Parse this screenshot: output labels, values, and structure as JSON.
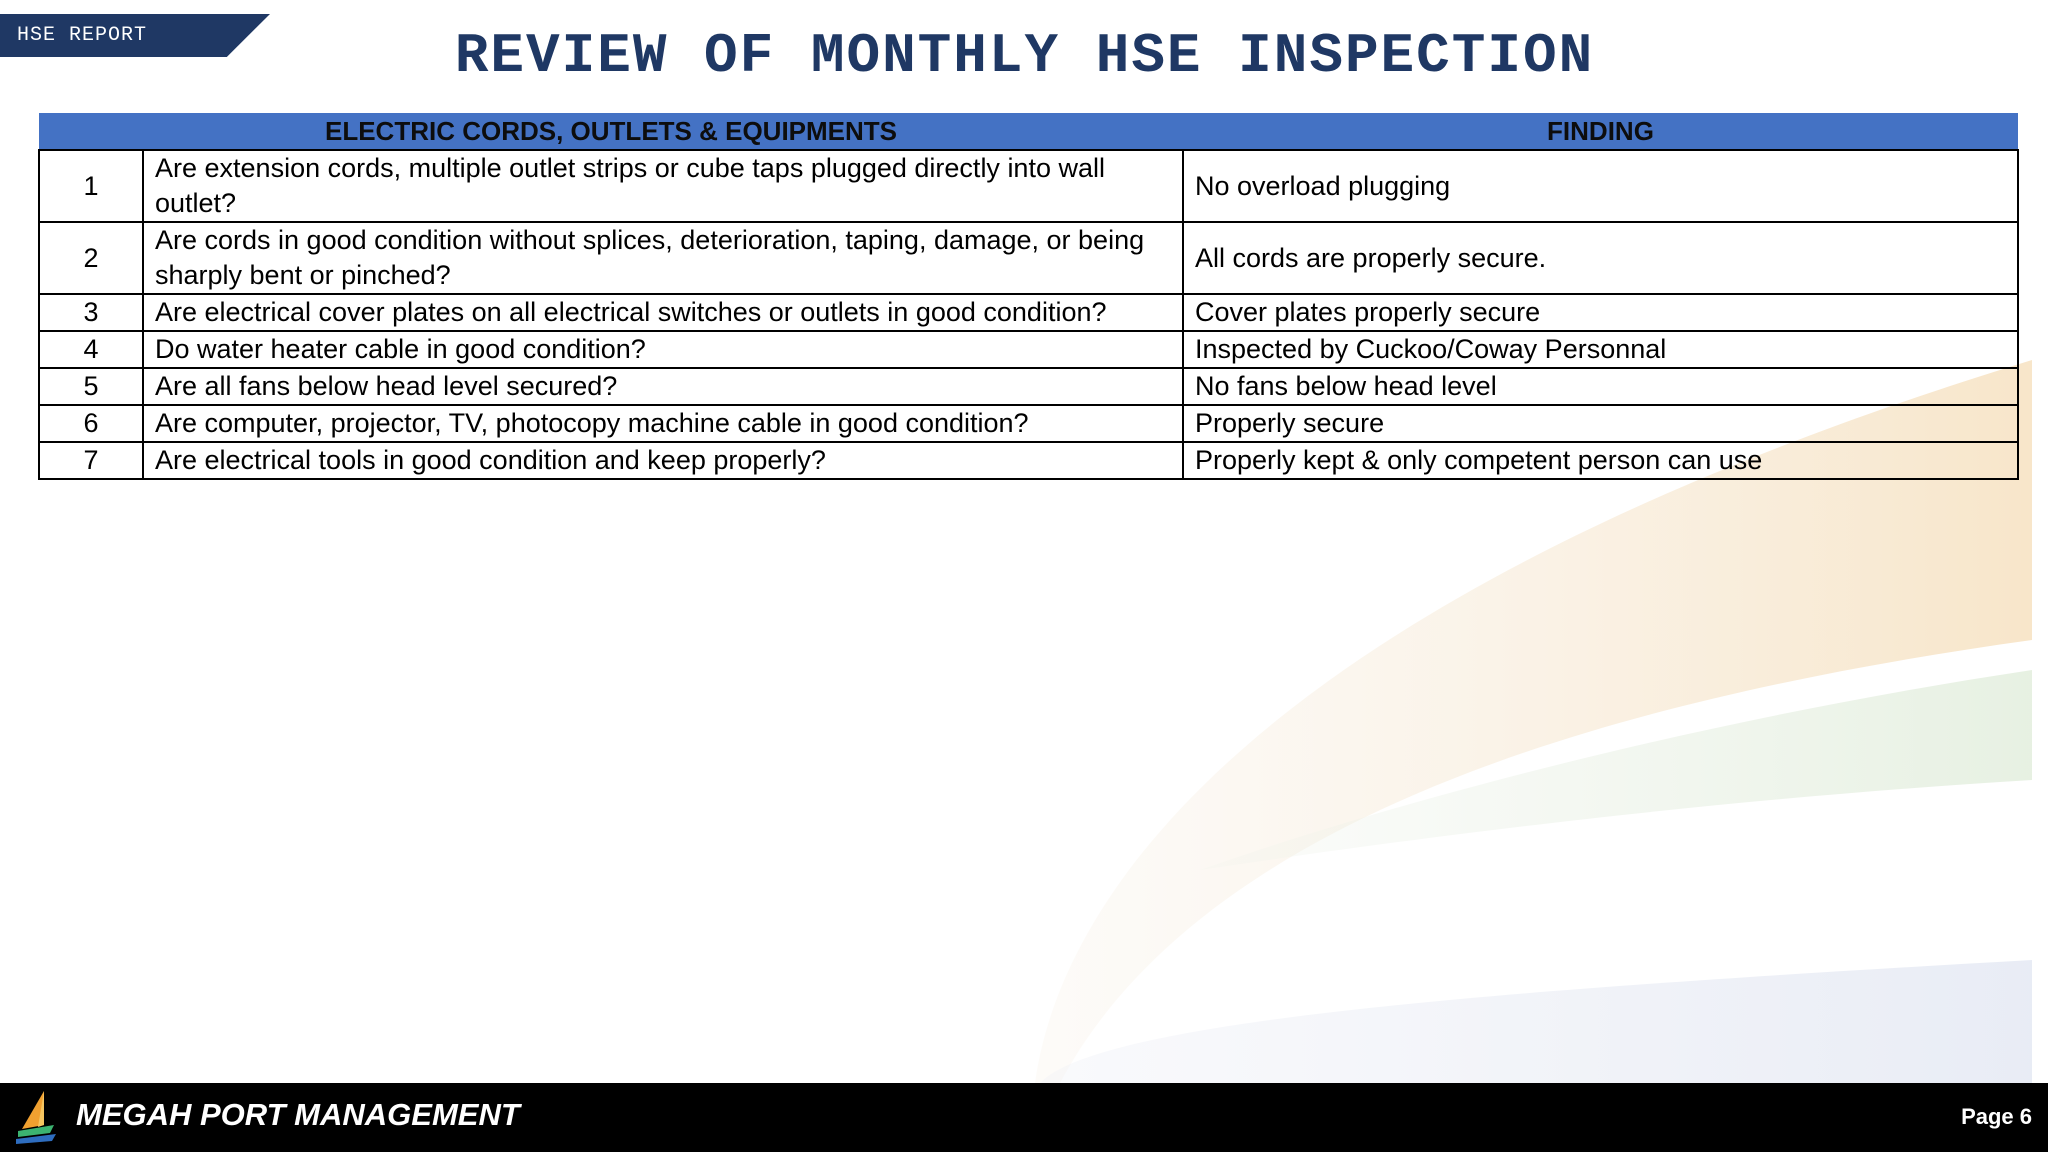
{
  "header": {
    "tag": "HSE REPORT",
    "title": "REVIEW OF MONTHLY HSE INSPECTION"
  },
  "table": {
    "headers": [
      "ELECTRIC CORDS, OUTLETS & EQUIPMENTS",
      "FINDING"
    ],
    "rows": [
      {
        "no": "1",
        "question": "Are extension cords, multiple outlet strips or cube taps plugged directly into wall outlet?",
        "finding": "No overload plugging"
      },
      {
        "no": "2",
        "question": "Are cords in good condition without splices, deterioration, taping, damage, or being sharply bent or pinched?",
        "finding": "All cords are properly secure."
      },
      {
        "no": "3",
        "question": "Are electrical cover plates on all electrical switches or outlets in good condition?",
        "finding": "Cover plates properly secure"
      },
      {
        "no": "4",
        "question": "Do water heater cable in good condition?",
        "finding": "Inspected by Cuckoo/Coway Personnal"
      },
      {
        "no": "5",
        "question": "Are all fans below head level secured?",
        "finding": "No fans below head level"
      },
      {
        "no": "6",
        "question": "Are computer, projector, TV, photocopy machine cable in good condition?",
        "finding": "Properly secure"
      },
      {
        "no": "7",
        "question": "Are electrical tools in good condition and keep properly?",
        "finding": "Properly kept & only competent person can use"
      }
    ]
  },
  "footer": {
    "company": "MEGAH PORT MANAGEMENT",
    "page": "Page 6",
    "logo_icon": "sail-logo-icon"
  },
  "colors": {
    "title": "#1f3864",
    "tag_bg": "#1f3864",
    "table_header_bg": "#4472c4",
    "footer_bg": "#000000"
  }
}
